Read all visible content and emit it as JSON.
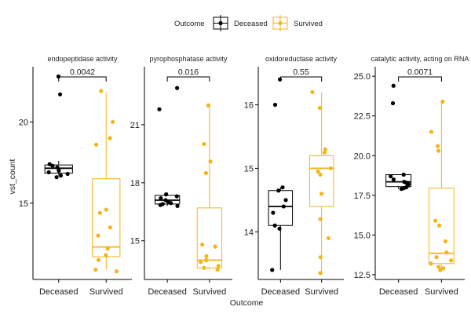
{
  "chart_data": {
    "type": "boxplot",
    "xlabel": "Outcome",
    "ylabel": "vst_count",
    "legend": {
      "title": "Outcome",
      "placement": "top",
      "entries": [
        {
          "name": "Deceased",
          "color": "#000000"
        },
        {
          "name": "Survived",
          "color": "#F5B519"
        }
      ]
    },
    "categories": [
      "Deceased",
      "Survived"
    ],
    "panels": [
      {
        "title": "endopeptidase activity",
        "ylim": [
          10.3,
          23.4
        ],
        "ticks": [
          15,
          20
        ],
        "pvalue": "0.0042",
        "boxes": {
          "Deceased": {
            "min": 16.7,
            "q1": 16.85,
            "median": 17.15,
            "q3": 17.35,
            "max": 17.6
          },
          "Survived": {
            "min": 10.9,
            "q1": 11.7,
            "median": 12.3,
            "q3": 16.5,
            "max": 21.8
          }
        },
        "points": {
          "Deceased": [
            22.8,
            21.7,
            17.4,
            17.3,
            17.2,
            17.0,
            16.9,
            16.8,
            16.7,
            16.6
          ],
          "Survived": [
            21.9,
            20.0,
            19.0,
            18.6,
            14.6,
            14.4,
            13.5,
            13.0,
            12.2,
            11.8,
            11.5,
            10.9,
            10.8
          ]
        }
      },
      {
        "title": "pyrophosphatase activity",
        "ylim": [
          13.0,
          24.0
        ],
        "ticks": [
          15,
          18,
          21
        ],
        "pvalue": "0.016",
        "boxes": {
          "Deceased": {
            "min": 16.8,
            "q1": 16.9,
            "median": 17.1,
            "q3": 17.35,
            "max": 17.5
          },
          "Survived": {
            "min": 13.5,
            "q1": 13.6,
            "median": 14.0,
            "q3": 16.7,
            "max": 22.0
          }
        },
        "points": {
          "Deceased": [
            22.9,
            21.8,
            17.4,
            17.3,
            17.2,
            17.1,
            17.0,
            16.95,
            16.9,
            16.85,
            16.8
          ],
          "Survived": [
            22.0,
            20.0,
            19.1,
            18.5,
            14.8,
            14.7,
            14.2,
            14.0,
            13.9,
            13.7,
            13.6,
            13.5
          ]
        }
      },
      {
        "title": "oxidoreductase activity",
        "ylim": [
          13.25,
          16.6
        ],
        "ticks": [
          14,
          15,
          16
        ],
        "pvalue": "0.55",
        "boxes": {
          "Deceased": {
            "min": 13.4,
            "q1": 14.1,
            "median": 14.4,
            "q3": 14.65,
            "max": 14.7
          },
          "Survived": {
            "min": 13.35,
            "q1": 14.4,
            "median": 15.0,
            "q3": 15.2,
            "max": 16.2
          }
        },
        "points": {
          "Deceased": [
            16.4,
            16.0,
            14.7,
            14.65,
            14.5,
            14.4,
            14.3,
            14.1,
            14.05,
            13.4
          ],
          "Survived": [
            16.2,
            15.95,
            15.3,
            15.25,
            15.0,
            14.95,
            14.9,
            14.6,
            14.2,
            13.9,
            13.6,
            13.35
          ]
        }
      },
      {
        "title": "catalytic activity, acting on RNA",
        "ylim": [
          12.2,
          25.6
        ],
        "ticks": [
          12.5,
          15.0,
          17.5,
          20.0,
          22.5,
          25.0
        ],
        "pvalue": "0.0071",
        "boxes": {
          "Deceased": {
            "min": 17.9,
            "q1": 18.05,
            "median": 18.35,
            "q3": 18.8,
            "max": 18.8
          },
          "Survived": {
            "min": 12.8,
            "q1": 13.2,
            "median": 13.85,
            "q3": 17.95,
            "max": 23.4
          }
        },
        "points": {
          "Deceased": [
            24.4,
            23.3,
            18.8,
            18.7,
            18.5,
            18.35,
            18.3,
            18.2,
            18.1,
            18.0,
            17.95,
            17.9
          ],
          "Survived": [
            23.4,
            21.5,
            20.6,
            20.3,
            15.9,
            15.6,
            14.6,
            13.9,
            13.6,
            13.4,
            13.2,
            13.0,
            12.9,
            12.8
          ]
        }
      }
    ]
  }
}
